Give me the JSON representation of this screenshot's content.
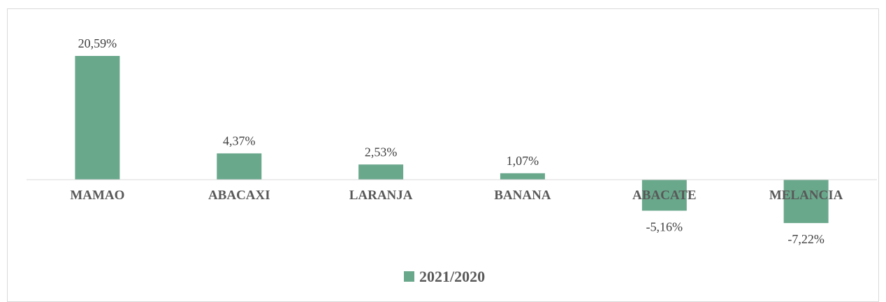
{
  "chart_data": {
    "type": "bar",
    "categories": [
      "MAMAO",
      "ABACAXI",
      "LARANJA",
      "BANANA",
      "ABACATE",
      "MELANCIA"
    ],
    "series": [
      {
        "name": "2021/2020",
        "values": [
          20.59,
          4.37,
          2.53,
          1.07,
          -5.16,
          -7.22
        ],
        "labels": [
          "20,59%",
          "4,37%",
          "2,53%",
          "1,07%",
          "-5,16%",
          "-7,22%"
        ],
        "color": "#6aa88c"
      }
    ],
    "title": "",
    "xlabel": "",
    "ylabel": "",
    "grid": false,
    "legend_position": "bottom"
  }
}
